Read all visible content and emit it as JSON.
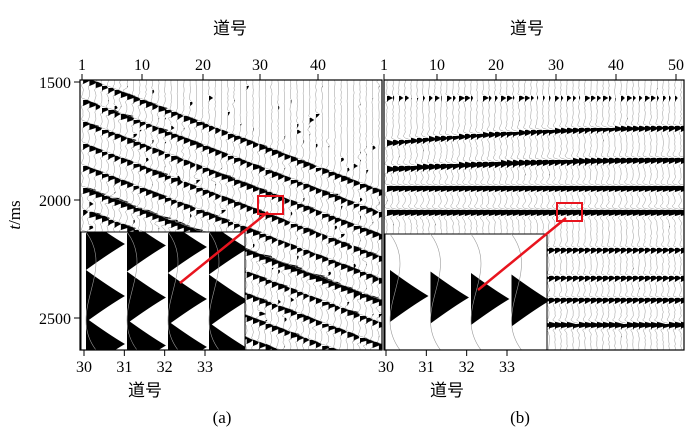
{
  "figure": {
    "panels": [
      {
        "label": "(a)",
        "top_axis_label": "道号",
        "top_ticks": [
          "1",
          "10",
          "20",
          "30",
          "40"
        ],
        "inset_axis_label": "道号",
        "inset_ticks": [
          "30",
          "31",
          "32",
          "33"
        ]
      },
      {
        "label": "(b)",
        "top_axis_label": "道号",
        "top_ticks": [
          "1",
          "10",
          "20",
          "30",
          "40",
          "50"
        ],
        "inset_axis_label": "道号",
        "inset_ticks": [
          "30",
          "31",
          "32",
          "33"
        ]
      }
    ],
    "y_axis": {
      "label_italic": "t",
      "label_rest": "/ms",
      "ticks": [
        "1500",
        "2000",
        "2500"
      ]
    },
    "colors": {
      "wiggle_fill": "#000000",
      "wiggle_line": "#9a9a9a",
      "highlight": "#e8141e"
    }
  }
}
